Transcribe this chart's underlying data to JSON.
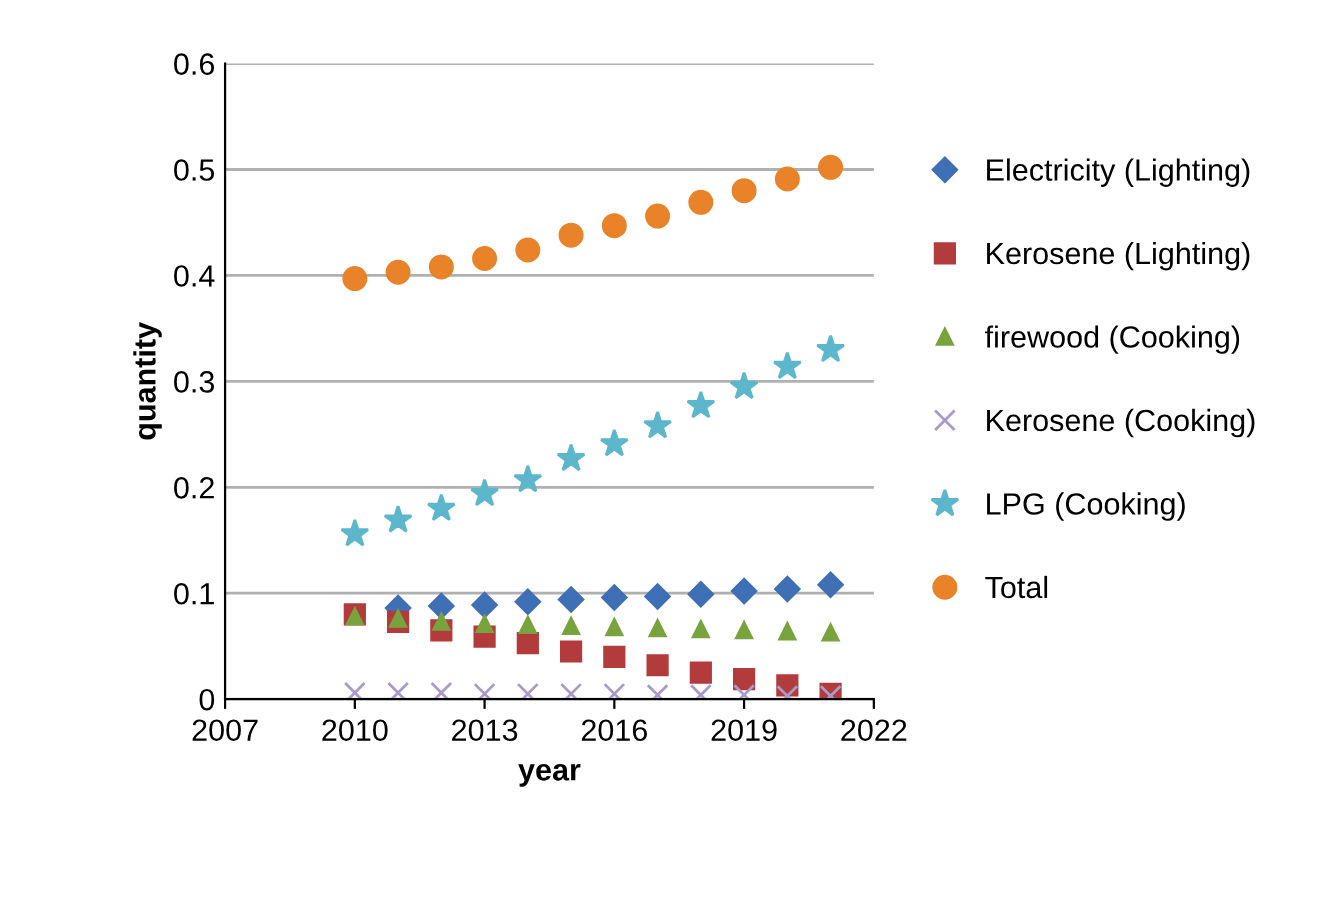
{
  "chart_data": {
    "type": "scatter",
    "xlabel": "year",
    "ylabel": "quantity",
    "x": [
      2010,
      2011,
      2012,
      2013,
      2014,
      2015,
      2016,
      2017,
      2018,
      2019,
      2020,
      2021
    ],
    "series": [
      {
        "name": "Electricity (Lighting)",
        "color": "#3f6fb5",
        "marker": "diamond",
        "values": [
          null,
          0.086,
          0.088,
          0.089,
          0.092,
          0.094,
          0.096,
          0.097,
          0.099,
          0.102,
          0.104,
          0.108
        ]
      },
      {
        "name": "Kerosene (Lighting)",
        "color": "#b23b3b",
        "marker": "square",
        "values": [
          0.08,
          0.073,
          0.065,
          0.059,
          0.053,
          0.045,
          0.04,
          0.032,
          0.025,
          0.019,
          0.013,
          0.005
        ]
      },
      {
        "name": "firewood (Cooking)",
        "color": "#78a33d",
        "marker": "triangle",
        "values": [
          0.078,
          0.076,
          0.073,
          0.071,
          0.07,
          0.069,
          0.068,
          0.067,
          0.066,
          0.065,
          0.064,
          0.063
        ]
      },
      {
        "name": "Kerosene (Cooking)",
        "color": "#a99bc9",
        "marker": "cross",
        "values": [
          0.006,
          0.006,
          0.006,
          0.005,
          0.005,
          0.005,
          0.005,
          0.004,
          0.004,
          0.004,
          0.003,
          0.003
        ]
      },
      {
        "name": "LPG (Cooking)",
        "color": "#5cb6cc",
        "marker": "star",
        "values": [
          0.156,
          0.169,
          0.18,
          0.194,
          0.207,
          0.227,
          0.241,
          0.258,
          0.277,
          0.295,
          0.314,
          0.33
        ]
      },
      {
        "name": "Total",
        "color": "#e8832a",
        "marker": "circle",
        "values": [
          0.397,
          0.403,
          0.408,
          0.416,
          0.424,
          0.438,
          0.447,
          0.456,
          0.469,
          0.48,
          0.491,
          0.502
        ]
      }
    ],
    "xlim": [
      2007,
      2022
    ],
    "xticks": [
      2007,
      2010,
      2013,
      2016,
      2019,
      2022
    ],
    "ylim": [
      0,
      0.6
    ],
    "yticks": [
      0,
      0.1,
      0.2,
      0.3,
      0.4,
      0.5,
      0.6
    ],
    "grid": "y",
    "legend": "right"
  }
}
